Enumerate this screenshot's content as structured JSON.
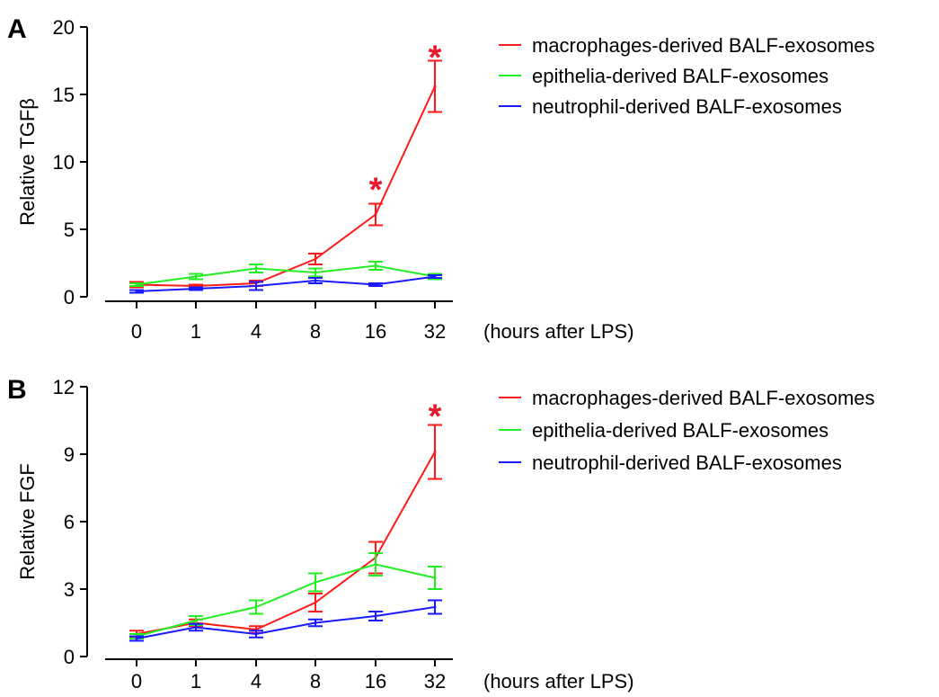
{
  "chart_data": [
    {
      "panel_label": "A",
      "type": "line",
      "categories": [
        "0",
        "1",
        "4",
        "8",
        "16",
        "32"
      ],
      "xlabel": "(hours after LPS)",
      "ylabel": "Relative TGFβ",
      "ylim": [
        0,
        20
      ],
      "yticks": [
        "0",
        "5",
        "10",
        "15",
        "20"
      ],
      "legend_position": "top-right",
      "series": [
        {
          "name": "macrophages-derived BALF-exosomes",
          "color": "#ff1a1a",
          "values": [
            0.9,
            0.8,
            1.0,
            2.8,
            6.1,
            15.6
          ],
          "errors": [
            0.2,
            0.1,
            0.2,
            0.4,
            0.8,
            1.9
          ]
        },
        {
          "name": "epithelia-derived BALF-exosomes",
          "color": "#22ee22",
          "values": [
            0.9,
            1.5,
            2.1,
            1.8,
            2.3,
            1.5
          ],
          "errors": [
            0.1,
            0.2,
            0.3,
            0.3,
            0.3,
            0.2
          ]
        },
        {
          "name": "neutrophil-derived BALF-exosomes",
          "color": "#1a1aff",
          "values": [
            0.4,
            0.6,
            0.8,
            1.2,
            0.9,
            1.5
          ],
          "errors": [
            0.1,
            0.1,
            0.3,
            0.2,
            0.1,
            0.1
          ]
        }
      ],
      "significance": [
        {
          "category": "16",
          "y": 8.3,
          "marker": "*",
          "color": "#e8192c"
        },
        {
          "category": "32",
          "y": 18.1,
          "marker": "*",
          "color": "#e8192c"
        }
      ]
    },
    {
      "panel_label": "B",
      "type": "line",
      "categories": [
        "0",
        "1",
        "4",
        "8",
        "16",
        "32"
      ],
      "xlabel": "(hours after LPS)",
      "ylabel": "Relative FGF",
      "ylim": [
        0,
        12
      ],
      "yticks": [
        "0",
        "3",
        "6",
        "9",
        "12"
      ],
      "legend_position": "top-right",
      "series": [
        {
          "name": "macrophages-derived BALF-exosomes",
          "color": "#ff1a1a",
          "values": [
            1.0,
            1.5,
            1.2,
            2.4,
            4.4,
            9.1
          ],
          "errors": [
            0.15,
            0.15,
            0.15,
            0.4,
            0.7,
            1.2
          ]
        },
        {
          "name": "epithelia-derived BALF-exosomes",
          "color": "#22ee22",
          "values": [
            0.9,
            1.6,
            2.2,
            3.3,
            4.1,
            3.5
          ],
          "errors": [
            0.1,
            0.2,
            0.3,
            0.4,
            0.5,
            0.5
          ]
        },
        {
          "name": "neutrophil-derived BALF-exosomes",
          "color": "#1a1aff",
          "values": [
            0.8,
            1.3,
            1.0,
            1.5,
            1.8,
            2.2
          ],
          "errors": [
            0.1,
            0.15,
            0.15,
            0.15,
            0.2,
            0.3
          ]
        }
      ],
      "significance": [
        {
          "category": "32",
          "y": 10.9,
          "marker": "*",
          "color": "#e8192c"
        }
      ]
    }
  ]
}
